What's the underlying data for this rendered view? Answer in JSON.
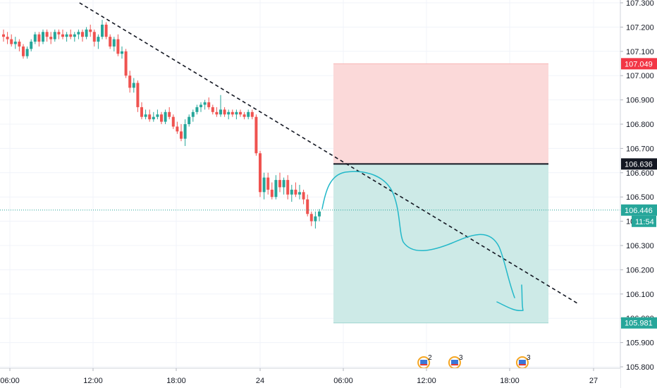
{
  "chart_data": {
    "type": "candlestick",
    "symbol_hint": "",
    "x_ticks": [
      "06:00",
      "12:00",
      "18:00",
      "24",
      "06:00",
      "12:00",
      "18:00",
      "27"
    ],
    "y_ticks": [
      "107.300",
      "107.200",
      "107.100",
      "107.000",
      "106.900",
      "106.800",
      "106.700",
      "106.600",
      "106.500",
      "106.400",
      "106.300",
      "106.200",
      "106.100",
      "106.000",
      "105.900",
      "105.800"
    ],
    "y_range": [
      105.78,
      107.31
    ],
    "price_labels": [
      {
        "name": "stop-loss",
        "text": "107.049",
        "value": 107.049,
        "color": "#f23645"
      },
      {
        "name": "entry",
        "text": "106.636",
        "value": 106.636,
        "color": "#131722"
      },
      {
        "name": "current-price",
        "text": "106.446",
        "value": 106.446,
        "color": "#26a69a"
      },
      {
        "name": "take-profit",
        "text": "105.981",
        "value": 105.981,
        "color": "#26a69a"
      }
    ],
    "countdown": "11:54",
    "colors": {
      "up": "#26a69a",
      "down": "#ef5350",
      "risk_zone": "#fbd9d9",
      "reward_zone": "#cdeae7",
      "drawing": "#22b8c9",
      "trendline": "#131722"
    },
    "candles_ohlc": [
      [
        107.17,
        107.19,
        107.14,
        107.16
      ],
      [
        107.16,
        107.18,
        107.13,
        107.15
      ],
      [
        107.15,
        107.17,
        107.12,
        107.13
      ],
      [
        107.13,
        107.16,
        107.11,
        107.14
      ],
      [
        107.14,
        107.15,
        107.1,
        107.12
      ],
      [
        107.12,
        107.13,
        107.07,
        107.08
      ],
      [
        107.08,
        107.12,
        107.07,
        107.11
      ],
      [
        107.11,
        107.15,
        107.1,
        107.14
      ],
      [
        107.14,
        107.18,
        107.13,
        107.17
      ],
      [
        107.17,
        107.18,
        107.12,
        107.14
      ],
      [
        107.14,
        107.19,
        107.13,
        107.18
      ],
      [
        107.18,
        107.19,
        107.14,
        107.16
      ],
      [
        107.16,
        107.18,
        107.13,
        107.15
      ],
      [
        107.15,
        107.19,
        107.14,
        107.18
      ],
      [
        107.18,
        107.19,
        107.15,
        107.17
      ],
      [
        107.17,
        107.19,
        107.15,
        107.16
      ],
      [
        107.16,
        107.18,
        107.14,
        107.17
      ],
      [
        107.17,
        107.19,
        107.15,
        107.16
      ],
      [
        107.16,
        107.18,
        107.14,
        107.17
      ],
      [
        107.17,
        107.19,
        107.15,
        107.18
      ],
      [
        107.18,
        107.19,
        107.14,
        107.16
      ],
      [
        107.16,
        107.2,
        107.15,
        107.19
      ],
      [
        107.19,
        107.21,
        107.16,
        107.18
      ],
      [
        107.18,
        107.19,
        107.12,
        107.14
      ],
      [
        107.14,
        107.17,
        107.11,
        107.16
      ],
      [
        107.16,
        107.23,
        107.15,
        107.21
      ],
      [
        107.21,
        107.22,
        107.15,
        107.16
      ],
      [
        107.16,
        107.17,
        107.11,
        107.12
      ],
      [
        107.12,
        107.16,
        107.1,
        107.15
      ],
      [
        107.15,
        107.17,
        107.08,
        107.09
      ],
      [
        107.09,
        107.12,
        107.07,
        107.1
      ],
      [
        107.1,
        107.11,
        106.99,
        107.0
      ],
      [
        107.0,
        107.02,
        106.93,
        106.95
      ],
      [
        106.95,
        106.99,
        106.93,
        106.97
      ],
      [
        106.97,
        106.98,
        106.85,
        106.87
      ],
      [
        106.87,
        106.89,
        106.82,
        106.83
      ],
      [
        106.83,
        106.86,
        106.82,
        106.84
      ],
      [
        106.84,
        106.86,
        106.81,
        106.82
      ],
      [
        106.82,
        106.85,
        106.81,
        106.83
      ],
      [
        106.83,
        106.86,
        106.82,
        106.84
      ],
      [
        106.84,
        106.85,
        106.8,
        106.81
      ],
      [
        106.81,
        106.86,
        106.8,
        106.85
      ],
      [
        106.85,
        106.87,
        106.82,
        106.83
      ],
      [
        106.83,
        106.84,
        106.78,
        106.79
      ],
      [
        106.79,
        106.81,
        106.76,
        106.77
      ],
      [
        106.77,
        106.8,
        106.73,
        106.74
      ],
      [
        106.74,
        106.82,
        106.71,
        106.8
      ],
      [
        106.8,
        106.84,
        106.79,
        106.83
      ],
      [
        106.83,
        106.86,
        106.81,
        106.85
      ],
      [
        106.85,
        106.88,
        106.84,
        106.87
      ],
      [
        106.87,
        106.89,
        106.85,
        106.88
      ],
      [
        106.88,
        106.9,
        106.86,
        106.89
      ],
      [
        106.89,
        106.91,
        106.86,
        106.87
      ],
      [
        106.87,
        106.88,
        106.84,
        106.85
      ],
      [
        106.85,
        106.87,
        106.83,
        106.84
      ],
      [
        106.84,
        106.92,
        106.83,
        106.86
      ],
      [
        106.86,
        106.87,
        106.83,
        106.84
      ],
      [
        106.84,
        106.86,
        106.82,
        106.85
      ],
      [
        106.85,
        106.86,
        106.83,
        106.84
      ],
      [
        106.84,
        106.86,
        106.82,
        106.85
      ],
      [
        106.85,
        106.86,
        106.83,
        106.84
      ],
      [
        106.84,
        106.85,
        106.82,
        106.83
      ],
      [
        106.83,
        106.86,
        106.82,
        106.85
      ],
      [
        106.85,
        106.86,
        106.82,
        106.83
      ],
      [
        106.83,
        106.84,
        106.67,
        106.68
      ],
      [
        106.68,
        106.69,
        106.5,
        106.52
      ],
      [
        106.52,
        106.6,
        106.49,
        106.58
      ],
      [
        106.58,
        106.6,
        106.51,
        106.53
      ],
      [
        106.53,
        106.56,
        106.49,
        106.5
      ],
      [
        106.5,
        106.59,
        106.49,
        106.57
      ],
      [
        106.57,
        106.6,
        106.52,
        106.54
      ],
      [
        106.54,
        106.58,
        106.51,
        106.57
      ],
      [
        106.57,
        106.59,
        106.49,
        106.51
      ],
      [
        106.51,
        106.55,
        106.48,
        106.53
      ],
      [
        106.53,
        106.56,
        106.5,
        106.51
      ],
      [
        106.51,
        106.55,
        106.49,
        106.52
      ],
      [
        106.52,
        106.53,
        106.47,
        106.49
      ],
      [
        106.49,
        106.51,
        106.42,
        106.43
      ],
      [
        106.43,
        106.44,
        106.38,
        106.4
      ],
      [
        106.4,
        106.44,
        106.37,
        106.42
      ],
      [
        106.42,
        106.45,
        106.4,
        106.44
      ]
    ],
    "trendline": [
      [
        0.121,
        107.3
      ],
      [
        0.88,
        106.06
      ]
    ],
    "position_zone": {
      "entry": 106.636,
      "stop": 107.049,
      "target": 105.981
    },
    "events": [
      {
        "label": "2",
        "slot": 0.645
      },
      {
        "label": "3",
        "slot": 0.692
      },
      {
        "label": "3",
        "slot": 0.795
      }
    ]
  }
}
